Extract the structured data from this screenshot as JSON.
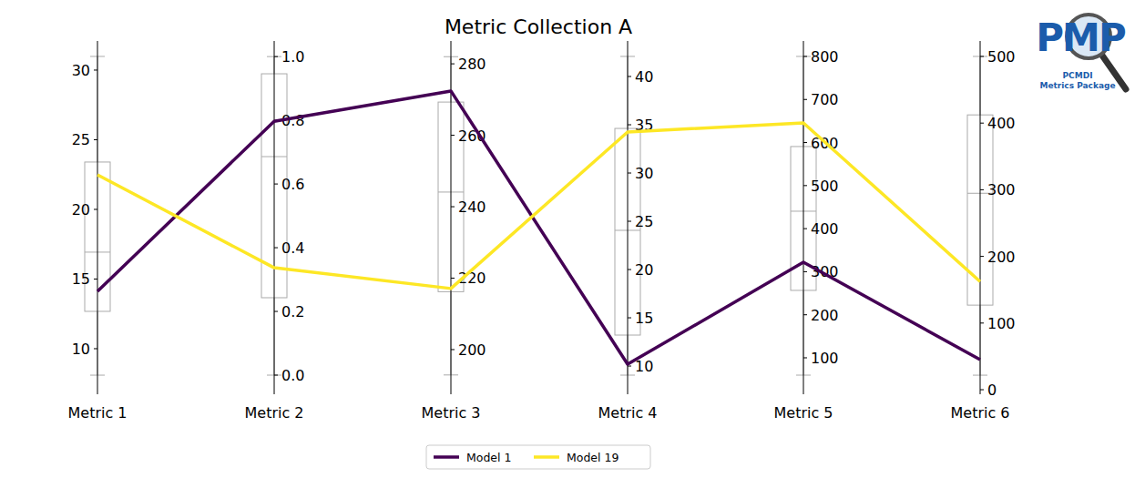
{
  "chart_data": {
    "type": "parallel_coordinates",
    "title": "Metric Collection A",
    "categories": [
      "Metric 1",
      "Metric 2",
      "Metric 3",
      "Metric 4",
      "Metric 5",
      "Metric 6"
    ],
    "axes": [
      {
        "ylim": [
          6.73,
          32.09
        ],
        "yticks": [
          10,
          15,
          20,
          25,
          30
        ]
      },
      {
        "ylim": [
          -0.06,
          1.049
        ],
        "yticks": [
          {
            "value": 0,
            "label": "0.0"
          },
          0.2,
          0.4,
          0.6,
          0.8,
          {
            "value": 1,
            "label": "1.0"
          }
        ]
      },
      {
        "ylim": [
          187.5,
          286.4
        ],
        "yticks": [
          200,
          220,
          240,
          260,
          280
        ]
      },
      {
        "ylim": [
          7.08,
          43.68
        ],
        "yticks": [
          10,
          15,
          20,
          25,
          30,
          35,
          40
        ]
      },
      {
        "ylim": [
          15.4,
          835.9
        ],
        "yticks": [
          100,
          200,
          300,
          400,
          500,
          600,
          700,
          800
        ]
      },
      {
        "ylim": [
          -6.8,
          523.2
        ],
        "yticks": [
          0,
          100,
          200,
          300,
          400,
          500
        ]
      }
    ],
    "boxes": [
      {
        "whisker_low": 8.1,
        "q1": 12.68,
        "median": 16.93,
        "q3": 23.4,
        "whisker_high": 30.98
      },
      {
        "whisker_low": 0.0,
        "q1": 0.243,
        "median": 0.686,
        "q3": 0.946,
        "whisker_high": 1.0
      },
      {
        "whisker_low": 192.9,
        "q1": 216.2,
        "median": 244.1,
        "q3": 269.3,
        "whisker_high": 282.0
      },
      {
        "whisker_low": 9.06,
        "q1": 13.21,
        "median": 24.06,
        "q3": 34.62,
        "whisker_high": 42.08
      },
      {
        "whisker_low": 59.8,
        "q1": 256.6,
        "median": 440.5,
        "q3": 590.7,
        "whisker_high": 800
      },
      {
        "whisker_low": 21.8,
        "q1": 126.9,
        "median": 294.7,
        "q3": 412.3,
        "whisker_high": 500
      }
    ],
    "series": [
      {
        "name": "Model 1",
        "color": "#440154",
        "values": [
          14.12,
          0.797,
          272.4,
          10.19,
          322,
          45
        ]
      },
      {
        "name": "Model 19",
        "color": "#fde725",
        "values": [
          22.48,
          0.337,
          217.1,
          34.25,
          645.7,
          162.3
        ]
      }
    ],
    "legend": "lower center",
    "annotations": [
      "PMP",
      "PCMDI",
      "Metrics Package"
    ]
  }
}
